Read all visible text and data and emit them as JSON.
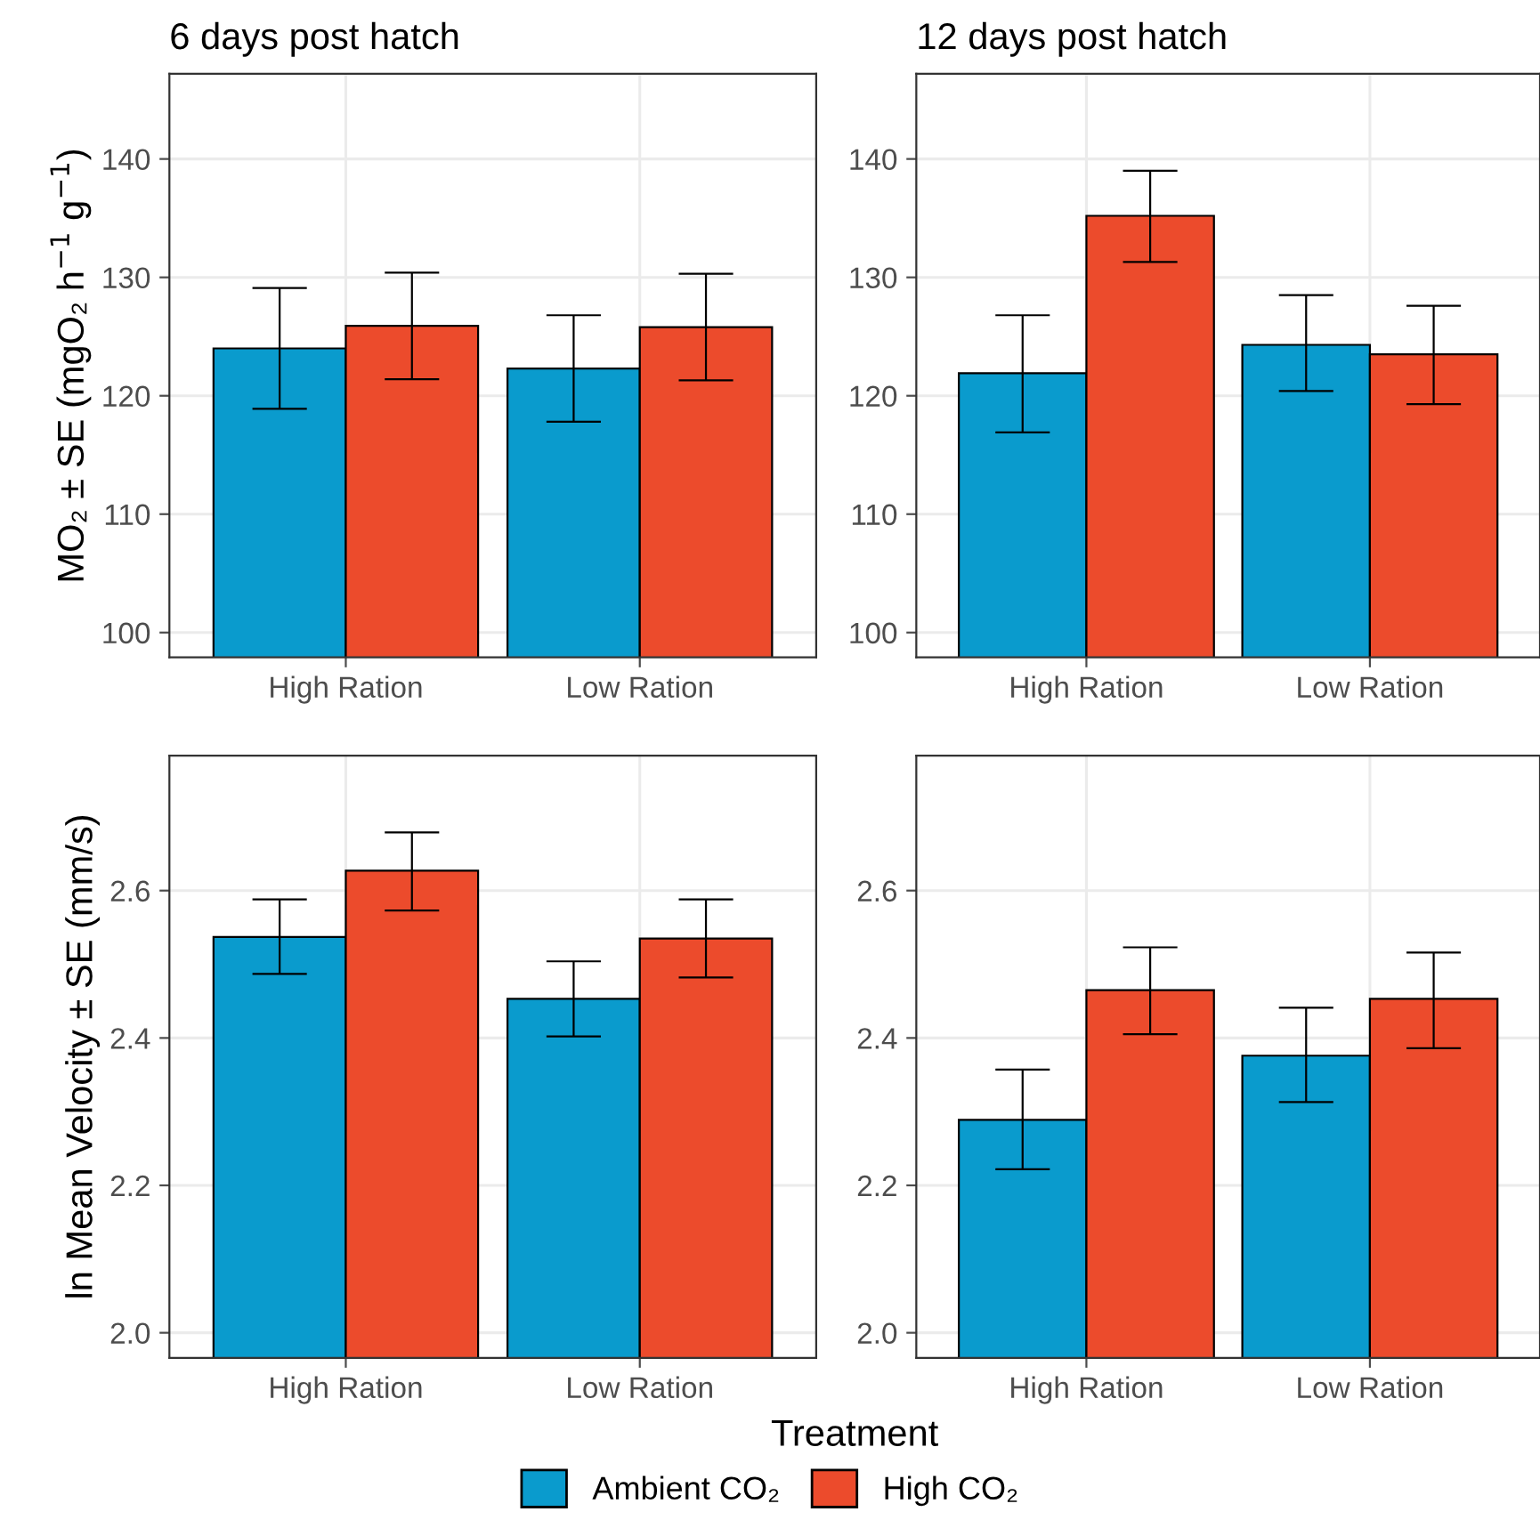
{
  "chart_data": [
    {
      "type": "bar",
      "title": "6 days post hatch",
      "ylabel": "MO₂ ± SE (mgO₂ h$^{−1}$ g$^{−1}$)",
      "categories": [
        "High Ration",
        "Low Ration"
      ],
      "ylim": [
        97.9,
        147.2
      ],
      "yticks": [
        100,
        110,
        120,
        130,
        140
      ],
      "grid": true,
      "legend": "bottom",
      "series": [
        {
          "name": "Ambient CO₂",
          "color": "#0a9bcd",
          "values": [
            124.0,
            122.3
          ],
          "errors": [
            [
              118.9,
              129.1
            ],
            [
              117.8,
              126.8
            ]
          ]
        },
        {
          "name": "High CO₂",
          "color": "#ec4b2c",
          "values": [
            125.9,
            125.8
          ],
          "errors": [
            [
              121.4,
              130.4
            ],
            [
              121.3,
              130.3
            ]
          ]
        }
      ]
    },
    {
      "type": "bar",
      "title": "12 days post hatch",
      "categories": [
        "High Ration",
        "Low Ration"
      ],
      "ylim": [
        97.9,
        147.2
      ],
      "yticks": [
        100,
        110,
        120,
        130,
        140
      ],
      "grid": true,
      "series": [
        {
          "color": "#0a9bcd",
          "values": [
            121.9,
            124.3
          ],
          "errors": [
            [
              116.9,
              126.8
            ],
            [
              120.4,
              128.5
            ]
          ]
        },
        {
          "color": "#ec4b2c",
          "values": [
            135.2,
            123.5
          ],
          "errors": [
            [
              131.3,
              139.0
            ],
            [
              119.3,
              127.6
            ]
          ]
        }
      ]
    },
    {
      "type": "bar",
      "ylabel": "ln Mean Velocity ± SE (mm/s)",
      "xlabel": "Treatment",
      "categories": [
        "High Ration",
        "Low Ration"
      ],
      "ylim": [
        1.966,
        2.783
      ],
      "yticks": [
        {
          "value": 2.0,
          "label": "2.0"
        },
        2.2,
        2.4,
        2.6
      ],
      "grid": true,
      "series": [
        {
          "color": "#0a9bcd",
          "values": [
            2.537,
            2.453
          ],
          "errors": [
            [
              2.487,
              2.588
            ],
            [
              2.402,
              2.504
            ]
          ]
        },
        {
          "color": "#ec4b2c",
          "values": [
            2.627,
            2.535
          ],
          "errors": [
            [
              2.573,
              2.679
            ],
            [
              2.482,
              2.588
            ]
          ]
        }
      ]
    },
    {
      "type": "bar",
      "categories": [
        "High Ration",
        "Low Ration"
      ],
      "ylim": [
        1.966,
        2.783
      ],
      "yticks": [
        {
          "value": 2.0,
          "label": "2.0"
        },
        2.2,
        2.4,
        2.6
      ],
      "grid": true,
      "series": [
        {
          "color": "#0a9bcd",
          "values": [
            2.289,
            2.376
          ],
          "errors": [
            [
              2.222,
              2.357
            ],
            [
              2.313,
              2.441
            ]
          ]
        },
        {
          "color": "#ec4b2c",
          "values": [
            2.465,
            2.453
          ],
          "errors": [
            [
              2.405,
              2.523
            ],
            [
              2.386,
              2.516
            ]
          ]
        }
      ]
    }
  ]
}
